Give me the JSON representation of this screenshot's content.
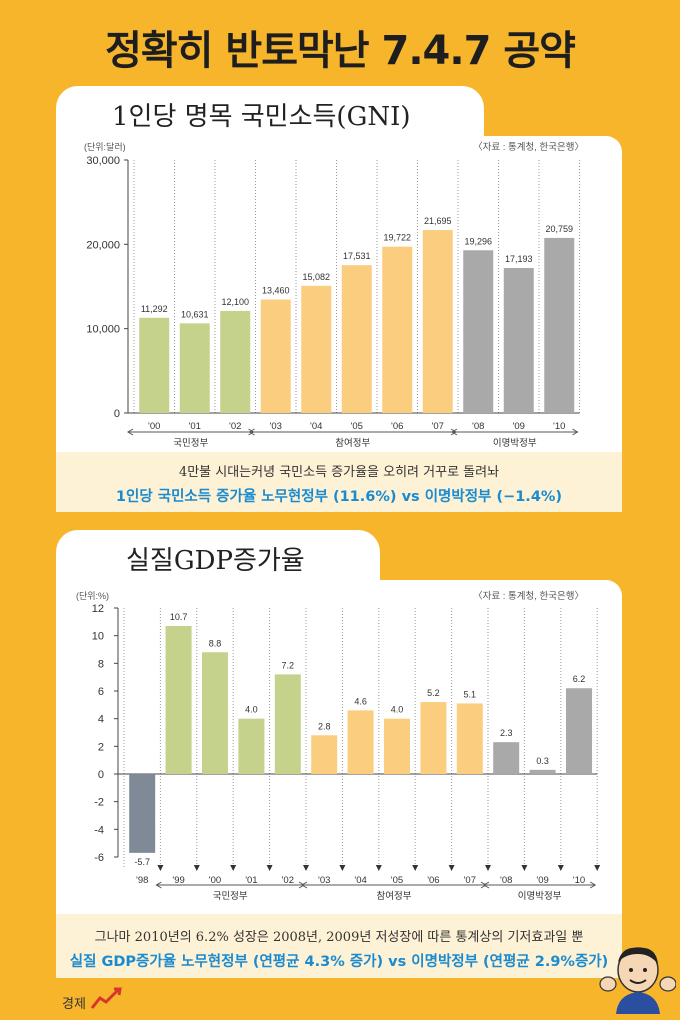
{
  "page": {
    "title": "정확히 반토막난 7.4.7 공약",
    "corner_label": "경제"
  },
  "colors": {
    "background": "#f7b52c",
    "gov_kukmin": "#c4d28c",
    "gov_chamyeo": "#fbcd7e",
    "gov_mb": "#a9a9a9",
    "negative_bar": "#7f8a96",
    "highlight_text": "#1b8bd0"
  },
  "chart1": {
    "heading": "1인당  명목  국민소득(GNI)",
    "unit": "(단위:달러)",
    "source": "〈자료 : 통계청, 한국은행〉",
    "caption_line1": "4만불 시대는커녕 국민소득 증가율을 오히려 거꾸로 돌려놔",
    "caption_line2": "1인당 국민소득 증가율 노무현정부 (11.6%) vs 이명박정부 (−1.4%)",
    "y_tick_labels": [
      "0",
      "10,000",
      "20,000",
      "30,000"
    ],
    "gov_groups": [
      "국민정부",
      "참여정부",
      "이명박정부"
    ]
  },
  "chart2": {
    "heading": "실질GDP증가율",
    "unit": "(단위:%)",
    "source": "〈자료 : 통계청, 한국은행〉",
    "caption_line1": "그나마 2010년의 6.2% 성장은 2008년, 2009년 저성장에 따른 통계상의 기저효과일 뿐",
    "caption_line2": "실질 GDP증가율 노무현정부 (연평균 4.3% 증가) vs 이명박정부 (연평균 2.9%증가)",
    "y_tick_labels": [
      "12",
      "10",
      "8",
      "6",
      "4",
      "2",
      "0",
      "-2",
      "-4",
      "-6"
    ],
    "gov_groups": [
      "국민정부",
      "참여정부",
      "이명박정부"
    ]
  },
  "chart_data": [
    {
      "type": "bar",
      "title": "1인당  명목  국민소득(GNI)",
      "ylabel": "(단위:달러)",
      "ylim": [
        0,
        30000
      ],
      "categories": [
        "'00",
        "'01",
        "'02",
        "'03",
        "'04",
        "'05",
        "'06",
        "'07",
        "'08",
        "'09",
        "'10"
      ],
      "values": [
        11292,
        10631,
        12100,
        13460,
        15082,
        17531,
        19722,
        21695,
        19296,
        17193,
        20759
      ],
      "value_labels": [
        "11,292",
        "10,631",
        "12,100",
        "13,460",
        "15,082",
        "17,531",
        "19,722",
        "21,695",
        "19,296",
        "17,193",
        "20,759"
      ],
      "groups": [
        {
          "name": "국민정부",
          "count": 3,
          "color": "#c4d28c"
        },
        {
          "name": "참여정부",
          "count": 5,
          "color": "#fbcd7e"
        },
        {
          "name": "이명박정부",
          "count": 3,
          "color": "#a9a9a9"
        }
      ],
      "grid": "vertical dotted"
    },
    {
      "type": "bar",
      "title": "실질GDP증가율",
      "ylabel": "(단위:%)",
      "ylim": [
        -6,
        12
      ],
      "categories": [
        "'98",
        "'99",
        "'00",
        "'01",
        "'02",
        "'03",
        "'04",
        "'05",
        "'06",
        "'07",
        "'08",
        "'09",
        "'10"
      ],
      "values": [
        -5.7,
        10.7,
        8.8,
        4.0,
        7.2,
        2.8,
        4.6,
        4.0,
        5.2,
        5.1,
        2.3,
        0.3,
        6.2
      ],
      "value_labels": [
        "-5.7",
        "10.7",
        "8.8",
        "4.0",
        "7.2",
        "2.8",
        "4.6",
        "4.0",
        "5.2",
        "5.1",
        "2.3",
        "0.3",
        "6.2"
      ],
      "groups": [
        {
          "name": "",
          "count": 1,
          "color": "#7f8a96"
        },
        {
          "name": "국민정부",
          "count": 4,
          "color": "#c4d28c"
        },
        {
          "name": "참여정부",
          "count": 5,
          "color": "#fbcd7e"
        },
        {
          "name": "이명박정부",
          "count": 3,
          "color": "#a9a9a9"
        }
      ],
      "grid": "vertical dotted"
    }
  ]
}
